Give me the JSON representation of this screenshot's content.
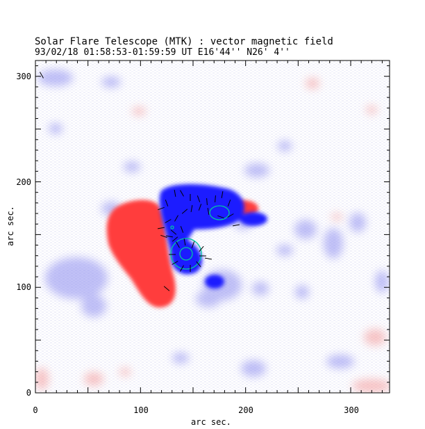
{
  "header": {
    "title": "Solar Flare Telescope (MTK) : vector magnetic field",
    "subtitle": "93/02/18  01:58:53-01:59:59 UT    E16'44''  N26' 4''"
  },
  "chart_data": {
    "type": "heatmap",
    "xlabel": "arc sec.",
    "ylabel": "arc sec.",
    "xlim": [
      0,
      337
    ],
    "ylim": [
      0,
      315
    ],
    "xticks": [
      "0",
      "100",
      "200",
      "300"
    ],
    "yticks": [
      "0",
      "100",
      "200",
      "300"
    ],
    "colors": {
      "positive": "#ff4040",
      "negative": "#2020ff",
      "contour": "#00c8a0",
      "vector": "#000000"
    }
  }
}
